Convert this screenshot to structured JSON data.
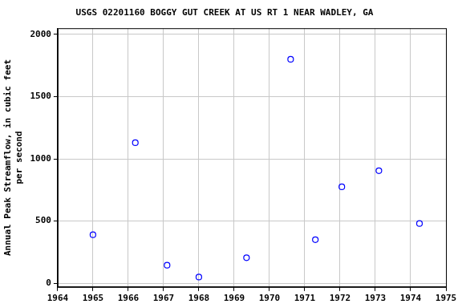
{
  "chart_data": {
    "type": "scatter",
    "title": "USGS 02201160 BOGGY GUT CREEK AT US RT 1 NEAR WADLEY, GA",
    "y_label": [
      "Annual Peak Streamflow, in cubic feet",
      "per second"
    ],
    "x": [
      1965.0,
      1966.2,
      1967.1,
      1968.0,
      1969.35,
      1970.6,
      1971.3,
      1972.05,
      1973.1,
      1974.25
    ],
    "values": [
      390,
      1130,
      145,
      50,
      205,
      1800,
      350,
      775,
      905,
      480
    ],
    "color": "#0000ff",
    "marker": "circle",
    "xlim": [
      1964,
      1975
    ],
    "xticks": [
      1964,
      1965,
      1966,
      1967,
      1968,
      1969,
      1970,
      1971,
      1972,
      1973,
      1974,
      1975
    ],
    "ylim": [
      -30,
      2050
    ],
    "yticks": [
      0,
      500,
      1000,
      1500,
      2000
    ],
    "grid": true
  }
}
